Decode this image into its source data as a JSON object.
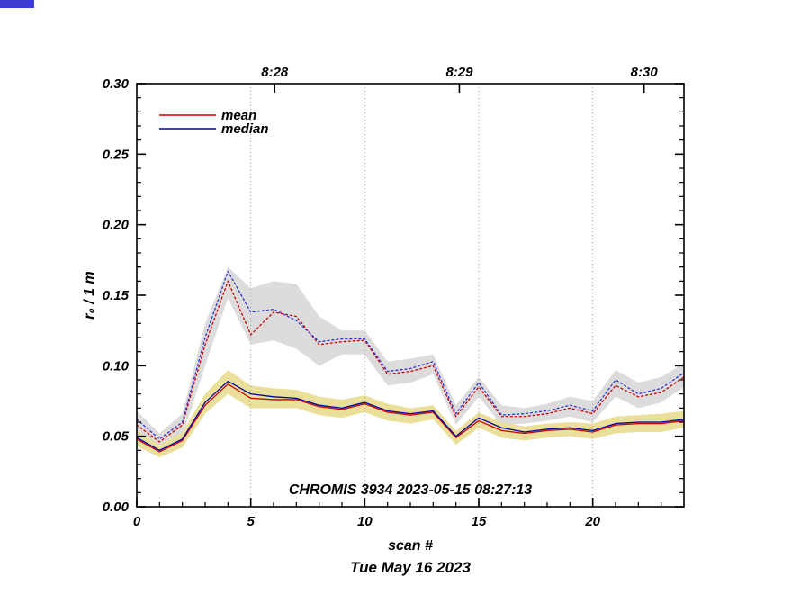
{
  "page": {
    "background": "#ffffff"
  },
  "decoration": {
    "top_left_bar_color": "#3b3bd0"
  },
  "chart_data": {
    "type": "line",
    "title_annotation": "CHROMIS 3934 2023-05-15 08:27:13",
    "xlabel": "scan #",
    "date_label": "Tue May 16 2023",
    "ylabel": "r₀ / 1 m",
    "xlim": [
      0,
      24
    ],
    "ylim": [
      0.0,
      0.3
    ],
    "x_major_ticks": [
      0,
      5,
      10,
      15,
      20
    ],
    "x_minor_step": 1,
    "y_major_ticks": [
      0.0,
      0.05,
      0.1,
      0.15,
      0.2,
      0.25,
      0.3
    ],
    "y_tick_labels": [
      "0.00",
      "0.05",
      "0.10",
      "0.15",
      "0.20",
      "0.25",
      "0.30"
    ],
    "y_minor_step": 0.01,
    "gridline_scans": [
      5,
      10,
      15,
      20
    ],
    "grid_color": "#9a9a9a",
    "top_axis": {
      "ticks": [
        {
          "scan": 6.05,
          "label": "8:28"
        },
        {
          "scan": 14.15,
          "label": "8:29"
        },
        {
          "scan": 22.25,
          "label": "8:30"
        }
      ]
    },
    "x": [
      0,
      1,
      2,
      3,
      4,
      5,
      6,
      7,
      8,
      9,
      10,
      11,
      12,
      13,
      14,
      15,
      16,
      17,
      18,
      19,
      20,
      21,
      22,
      23,
      24
    ],
    "bands": [
      {
        "name": "gray-band",
        "color": "#dcdcdc",
        "upper": [
          0.068,
          0.052,
          0.066,
          0.13,
          0.17,
          0.155,
          0.16,
          0.158,
          0.135,
          0.125,
          0.125,
          0.103,
          0.105,
          0.108,
          0.072,
          0.092,
          0.072,
          0.07,
          0.073,
          0.078,
          0.075,
          0.097,
          0.088,
          0.092,
          0.102
        ],
        "lower": [
          0.052,
          0.042,
          0.05,
          0.1,
          0.148,
          0.115,
          0.118,
          0.112,
          0.1,
          0.108,
          0.108,
          0.086,
          0.088,
          0.094,
          0.058,
          0.078,
          0.058,
          0.059,
          0.061,
          0.064,
          0.06,
          0.078,
          0.07,
          0.074,
          0.085
        ]
      },
      {
        "name": "yellow-band",
        "color": "#eae09c",
        "upper": [
          0.054,
          0.044,
          0.053,
          0.08,
          0.097,
          0.086,
          0.084,
          0.083,
          0.078,
          0.076,
          0.079,
          0.073,
          0.07,
          0.072,
          0.054,
          0.067,
          0.06,
          0.057,
          0.059,
          0.06,
          0.059,
          0.064,
          0.065,
          0.066,
          0.068
        ],
        "lower": [
          0.043,
          0.035,
          0.042,
          0.066,
          0.08,
          0.07,
          0.07,
          0.07,
          0.065,
          0.063,
          0.067,
          0.061,
          0.059,
          0.062,
          0.044,
          0.056,
          0.049,
          0.047,
          0.049,
          0.05,
          0.048,
          0.052,
          0.053,
          0.053,
          0.056
        ]
      }
    ],
    "series": [
      {
        "name": "mean-dotted",
        "style": "dotted",
        "color": "#cc0000",
        "values": [
          0.058,
          0.046,
          0.058,
          0.115,
          0.16,
          0.122,
          0.138,
          0.135,
          0.115,
          0.117,
          0.118,
          0.094,
          0.096,
          0.1,
          0.064,
          0.085,
          0.064,
          0.064,
          0.066,
          0.07,
          0.066,
          0.086,
          0.078,
          0.081,
          0.092
        ]
      },
      {
        "name": "median-dotted",
        "style": "dotted",
        "color": "#3333cc",
        "values": [
          0.062,
          0.048,
          0.06,
          0.12,
          0.167,
          0.138,
          0.14,
          0.132,
          0.117,
          0.119,
          0.119,
          0.096,
          0.098,
          0.103,
          0.066,
          0.088,
          0.065,
          0.066,
          0.068,
          0.072,
          0.068,
          0.09,
          0.08,
          0.084,
          0.095
        ]
      },
      {
        "name": "mean",
        "style": "solid",
        "color": "#cc0000",
        "values": [
          0.048,
          0.039,
          0.047,
          0.072,
          0.087,
          0.077,
          0.076,
          0.076,
          0.071,
          0.069,
          0.073,
          0.067,
          0.065,
          0.067,
          0.049,
          0.061,
          0.054,
          0.052,
          0.054,
          0.055,
          0.053,
          0.058,
          0.059,
          0.059,
          0.061
        ]
      },
      {
        "name": "median",
        "style": "solid",
        "color": "#0000a0",
        "values": [
          0.049,
          0.04,
          0.048,
          0.074,
          0.089,
          0.08,
          0.078,
          0.077,
          0.072,
          0.07,
          0.074,
          0.068,
          0.066,
          0.068,
          0.05,
          0.063,
          0.056,
          0.053,
          0.055,
          0.056,
          0.054,
          0.059,
          0.06,
          0.06,
          0.062
        ]
      }
    ],
    "legend": {
      "items": [
        {
          "label": "mean",
          "color": "#cc0000"
        },
        {
          "label": "median",
          "color": "#0000a0"
        }
      ]
    }
  }
}
